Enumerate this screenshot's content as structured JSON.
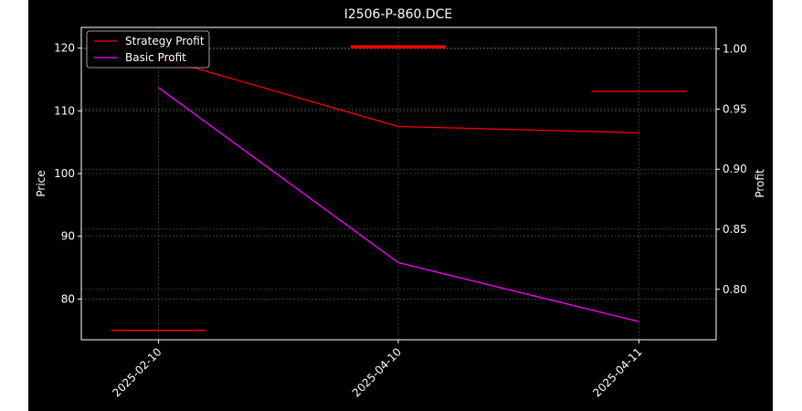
{
  "chart_data": {
    "type": "line",
    "title": "I2506-P-860.DCE",
    "x_ticks": [
      "2025-02-10",
      "2025-04-10",
      "2025-04-11"
    ],
    "y_left": {
      "label": "Price",
      "lim": [
        73.5,
        123.3
      ],
      "ticks": [
        80,
        90,
        100,
        110,
        120
      ]
    },
    "y_right": {
      "label": "Profit",
      "lim": [
        0.758,
        1.018
      ],
      "ticks": [
        "0.80",
        "0.85",
        "0.90",
        "0.95",
        "1.00"
      ]
    },
    "grid": true,
    "legend_position": "top-left",
    "series": [
      {
        "name": "Strategy Profit",
        "axis": "left",
        "color": "#ff0000",
        "values": [
          118.5,
          107.5,
          106.5
        ]
      },
      {
        "name": "Basic Profit",
        "axis": "left",
        "color": "#ff00ff",
        "values": [
          113.7,
          85.8,
          76.4
        ]
      }
    ],
    "markers": [
      {
        "axis": "left",
        "x_index": 0,
        "value": 75.0,
        "color": "#ff0000",
        "width": "thin"
      },
      {
        "axis": "left",
        "x_index": 1,
        "value": 120.2,
        "color": "#ff0000",
        "width": "thick"
      },
      {
        "axis": "left",
        "x_index": 2,
        "value": 113.1,
        "color": "#ff0000",
        "width": "thin"
      }
    ]
  }
}
